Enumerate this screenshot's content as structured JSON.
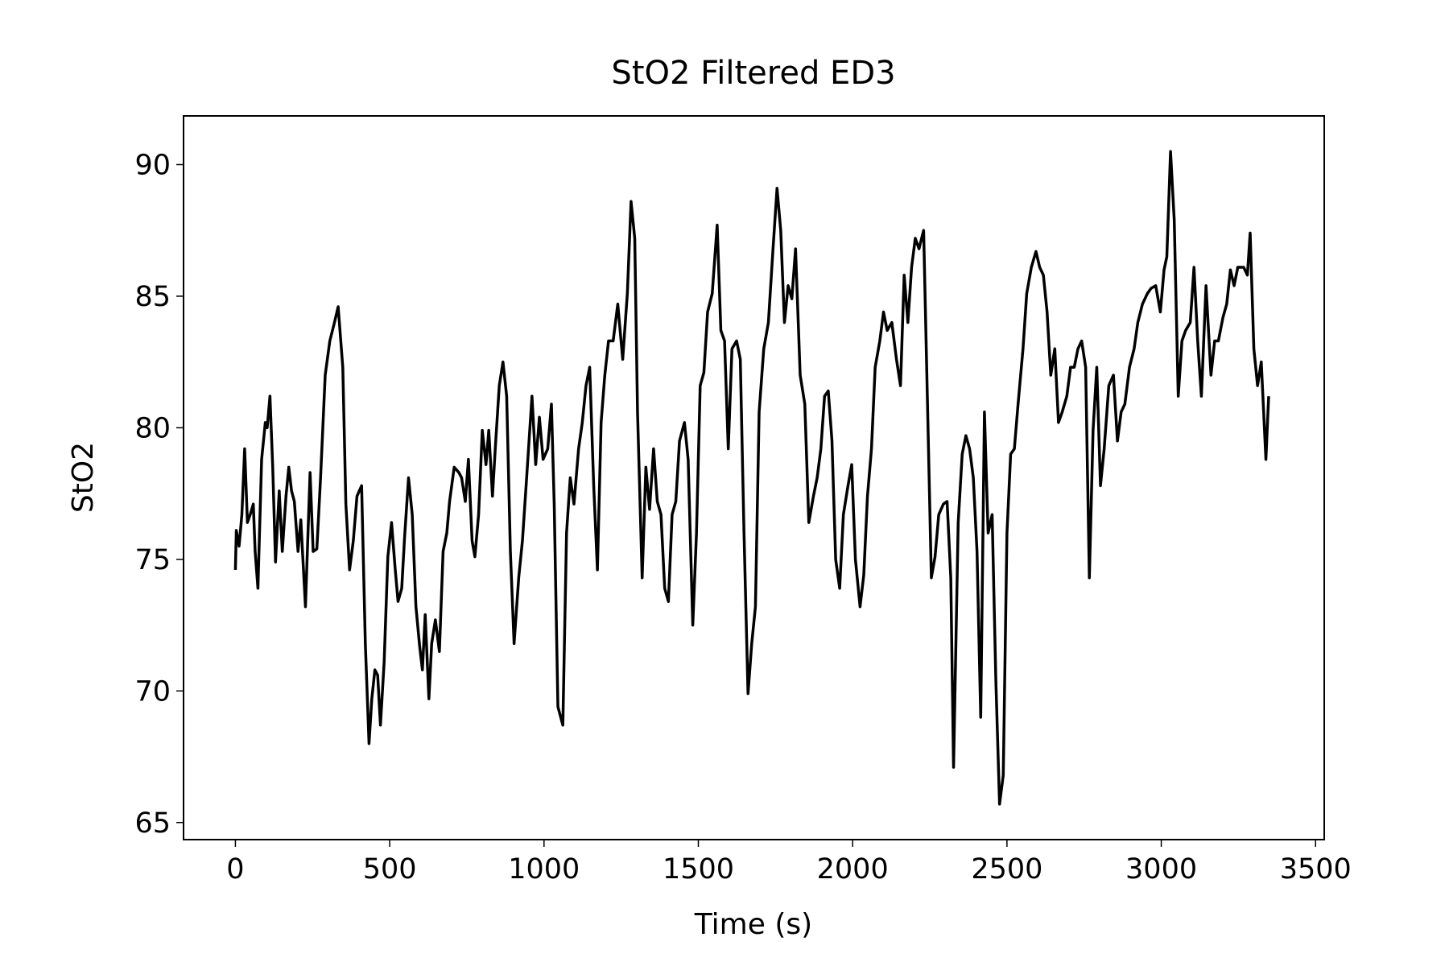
{
  "chart_data": {
    "type": "line",
    "title": "StO2 Filtered ED3",
    "xlabel": "Time (s)",
    "ylabel": "StO2",
    "color": "#000000",
    "xlim": [
      -168,
      3528
    ],
    "ylim": [
      64.35,
      91.85
    ],
    "xticks": [
      0,
      500,
      1000,
      1500,
      2000,
      2500,
      3000,
      3500
    ],
    "yticks": [
      65,
      70,
      75,
      80,
      85,
      90
    ],
    "grid": false,
    "x": [
      0,
      3,
      12,
      21,
      30,
      39,
      48,
      58,
      64,
      73,
      85,
      97,
      103,
      112,
      121,
      130,
      142,
      152,
      164,
      173,
      182,
      191,
      203,
      212,
      227,
      242,
      252,
      264,
      276,
      291,
      306,
      321,
      333,
      348,
      358,
      370,
      382,
      394,
      409,
      421,
      433,
      442,
      452,
      461,
      470,
      482,
      494,
      506,
      518,
      527,
      539,
      548,
      561,
      573,
      585,
      597,
      606,
      615,
      627,
      636,
      648,
      661,
      673,
      685,
      694,
      709,
      724,
      733,
      745,
      755,
      767,
      776,
      788,
      800,
      812,
      821,
      833,
      842,
      855,
      867,
      879,
      891,
      903,
      918,
      930,
      942,
      961,
      973,
      985,
      997,
      1012,
      1024,
      1033,
      1045,
      1061,
      1073,
      1085,
      1097,
      1112,
      1124,
      1136,
      1148,
      1161,
      1173,
      1185,
      1197,
      1209,
      1224,
      1239,
      1255,
      1270,
      1282,
      1294,
      1303,
      1318,
      1330,
      1342,
      1355,
      1367,
      1379,
      1391,
      1403,
      1415,
      1427,
      1439,
      1455,
      1467,
      1482,
      1494,
      1506,
      1518,
      1530,
      1545,
      1561,
      1573,
      1585,
      1597,
      1609,
      1624,
      1636,
      1648,
      1661,
      1673,
      1685,
      1697,
      1712,
      1727,
      1742,
      1755,
      1767,
      1779,
      1791,
      1803,
      1815,
      1830,
      1845,
      1858,
      1873,
      1885,
      1897,
      1909,
      1921,
      1933,
      1945,
      1958,
      1970,
      1985,
      1997,
      2009,
      2024,
      2036,
      2048,
      2061,
      2073,
      2088,
      2100,
      2112,
      2127,
      2142,
      2155,
      2167,
      2179,
      2191,
      2203,
      2215,
      2230,
      2242,
      2255,
      2267,
      2279,
      2294,
      2306,
      2318,
      2327,
      2342,
      2355,
      2367,
      2379,
      2391,
      2403,
      2415,
      2427,
      2439,
      2452,
      2464,
      2476,
      2488,
      2500,
      2512,
      2524,
      2536,
      2552,
      2564,
      2579,
      2594,
      2606,
      2618,
      2630,
      2642,
      2655,
      2667,
      2679,
      2694,
      2706,
      2718,
      2730,
      2742,
      2755,
      2767,
      2779,
      2791,
      2803,
      2815,
      2830,
      2845,
      2858,
      2870,
      2882,
      2897,
      2912,
      2924,
      2939,
      2955,
      2967,
      2982,
      2997,
      3009,
      3018,
      3030,
      3042,
      3055,
      3067,
      3079,
      3094,
      3106,
      3118,
      3130,
      3145,
      3161,
      3173,
      3185,
      3200,
      3212,
      3224,
      3236,
      3248,
      3267,
      3279,
      3288,
      3300,
      3312,
      3324,
      3339,
      3348
    ],
    "values": [
      74.6,
      76.1,
      75.5,
      76.7,
      79.2,
      76.4,
      76.7,
      77.1,
      75.3,
      73.9,
      78.8,
      80.2,
      80.0,
      81.2,
      78.5,
      74.9,
      77.6,
      75.3,
      77.4,
      78.5,
      77.6,
      77.2,
      75.3,
      76.5,
      73.2,
      78.3,
      75.3,
      75.4,
      78.1,
      82.0,
      83.3,
      84.0,
      84.6,
      82.3,
      77.1,
      74.6,
      75.7,
      77.4,
      77.8,
      71.8,
      68.0,
      69.7,
      70.8,
      70.6,
      68.7,
      71.1,
      75.1,
      76.4,
      74.6,
      73.4,
      73.9,
      75.8,
      78.1,
      76.7,
      73.2,
      71.7,
      70.8,
      72.9,
      69.7,
      71.8,
      72.7,
      71.5,
      75.3,
      76.0,
      77.2,
      78.5,
      78.3,
      78.1,
      77.2,
      78.8,
      75.7,
      75.1,
      76.7,
      79.9,
      78.6,
      79.9,
      77.4,
      79.2,
      81.6,
      82.5,
      81.2,
      75.3,
      71.8,
      74.3,
      75.7,
      77.8,
      81.2,
      78.6,
      80.4,
      78.8,
      79.2,
      80.9,
      77.1,
      69.4,
      68.7,
      76.0,
      78.1,
      77.1,
      79.2,
      80.2,
      81.6,
      82.3,
      77.8,
      74.6,
      80.2,
      82.0,
      83.3,
      83.3,
      84.7,
      82.6,
      85.1,
      88.6,
      87.2,
      80.6,
      74.3,
      78.5,
      76.9,
      79.2,
      77.2,
      76.7,
      73.9,
      73.4,
      76.7,
      77.2,
      79.5,
      80.2,
      78.8,
      72.5,
      76.0,
      81.6,
      82.1,
      84.4,
      85.1,
      87.7,
      83.7,
      83.3,
      79.2,
      83.0,
      83.3,
      82.6,
      76.0,
      69.9,
      71.8,
      73.2,
      80.6,
      83.0,
      84.0,
      86.8,
      89.1,
      87.5,
      84.0,
      85.4,
      84.9,
      86.8,
      82.0,
      80.9,
      76.4,
      77.4,
      78.1,
      79.2,
      81.2,
      81.4,
      79.5,
      75.0,
      73.9,
      76.7,
      77.8,
      78.6,
      75.0,
      73.2,
      74.4,
      77.4,
      79.2,
      82.3,
      83.3,
      84.4,
      83.7,
      84.0,
      82.6,
      81.6,
      85.8,
      84.0,
      86.1,
      87.2,
      86.8,
      87.5,
      81.2,
      74.3,
      75.1,
      76.7,
      77.1,
      77.2,
      74.3,
      67.1,
      76.4,
      79.0,
      79.7,
      79.2,
      78.1,
      75.3,
      69.0,
      80.6,
      76.0,
      76.7,
      70.4,
      65.7,
      66.8,
      76.0,
      79.0,
      79.2,
      80.9,
      83.0,
      85.1,
      86.1,
      86.7,
      86.1,
      85.8,
      84.4,
      82.0,
      83.0,
      80.2,
      80.6,
      81.2,
      82.3,
      82.3,
      83.0,
      83.3,
      82.3,
      74.3,
      79.9,
      82.3,
      77.8,
      79.2,
      81.6,
      82.0,
      79.5,
      80.6,
      80.9,
      82.3,
      83.0,
      84.0,
      84.7,
      85.1,
      85.3,
      85.4,
      84.4,
      86.0,
      86.5,
      90.5,
      87.9,
      81.2,
      83.3,
      83.7,
      84.0,
      86.1,
      83.3,
      81.2,
      85.4,
      82.0,
      83.3,
      83.3,
      84.2,
      84.7,
      86.0,
      85.4,
      86.1,
      86.1,
      85.8,
      87.4,
      83.0,
      81.6,
      82.5,
      78.8,
      81.2
    ]
  }
}
